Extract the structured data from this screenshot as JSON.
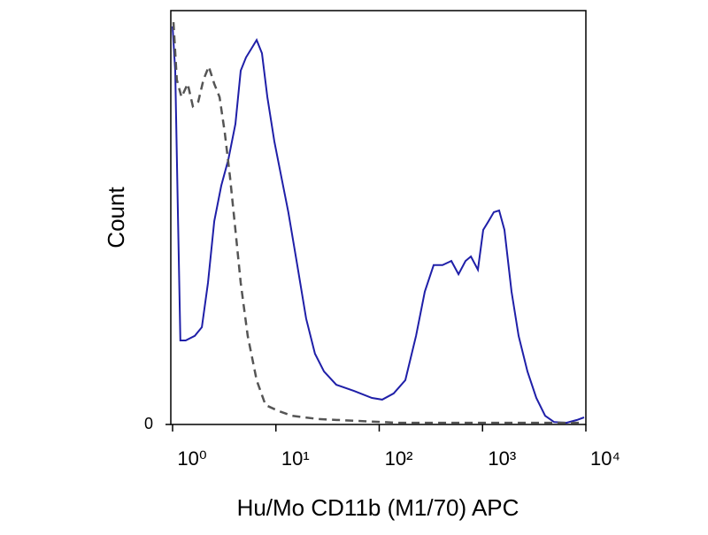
{
  "chart_data": {
    "type": "line",
    "xlabel": "Hu/Mo CD11b (M1/70) APC",
    "ylabel": "Count",
    "xscale": "log",
    "xlim": [
      1,
      10000
    ],
    "xticks": [
      {
        "value": 1,
        "label": "10⁰"
      },
      {
        "value": 10,
        "label": "10¹"
      },
      {
        "value": 100,
        "label": "10²"
      },
      {
        "value": 1000,
        "label": "10³"
      },
      {
        "value": 10000,
        "label": "10⁴"
      }
    ],
    "ylim": [
      0,
      100
    ],
    "yticks": [
      0
    ],
    "series": [
      {
        "color": "#1f1fa8",
        "dash": "solid",
        "x": [
          1.0,
          1.06,
          1.13,
          1.19,
          1.34,
          1.64,
          1.92,
          2.2,
          2.53,
          2.96,
          3.47,
          4.06,
          4.57,
          5.14,
          5.78,
          6.51,
          7.33,
          8.26,
          9.66,
          11.3,
          13.2,
          16.1,
          19.6,
          23.9,
          29.2,
          38.4,
          57,
          85,
          107,
          138,
          179,
          227,
          276,
          336,
          410,
          499,
          585,
          684,
          771,
          902,
          1014,
          1142,
          1286,
          1448,
          1630,
          1909,
          2234,
          2723,
          3313,
          4036,
          4918,
          6486,
          8204,
          9610
        ],
        "values": [
          96.2,
          85.5,
          49.1,
          20.3,
          20.3,
          21.4,
          23.5,
          34.2,
          49.1,
          57.7,
          64.1,
          72.6,
          85.5,
          88.7,
          90.8,
          92.9,
          89.7,
          79.1,
          68.4,
          59.8,
          51.3,
          38.5,
          25.6,
          17.1,
          12.8,
          9.6,
          8.1,
          6.4,
          6.0,
          7.5,
          10.7,
          21.4,
          32.1,
          38.5,
          38.5,
          39.5,
          36.3,
          39.5,
          40.6,
          37.4,
          47.0,
          49.1,
          51.3,
          51.7,
          47.0,
          32.1,
          21.4,
          12.8,
          6.4,
          2.1,
          0.6,
          0.4,
          1.1,
          1.7
        ]
      },
      {
        "color": "#555555",
        "dash": "dashed",
        "x": [
          1.02,
          1.1,
          1.22,
          1.4,
          1.57,
          1.77,
          1.99,
          2.24,
          2.53,
          2.85,
          3.2,
          3.6,
          4.06,
          4.57,
          5.34,
          6.51,
          7.93,
          10.7,
          14.3,
          25.9,
          57,
          153,
          410,
          1337,
          4365,
          9610
        ],
        "values": [
          97.2,
          83.3,
          79.1,
          82.3,
          76.9,
          78.0,
          83.3,
          86.5,
          82.3,
          79.1,
          70.5,
          59.8,
          47.0,
          34.2,
          21.4,
          10.7,
          4.7,
          3.2,
          2.1,
          1.3,
          0.9,
          0.4,
          0.4,
          0.4,
          0.4,
          0.4
        ]
      }
    ]
  }
}
